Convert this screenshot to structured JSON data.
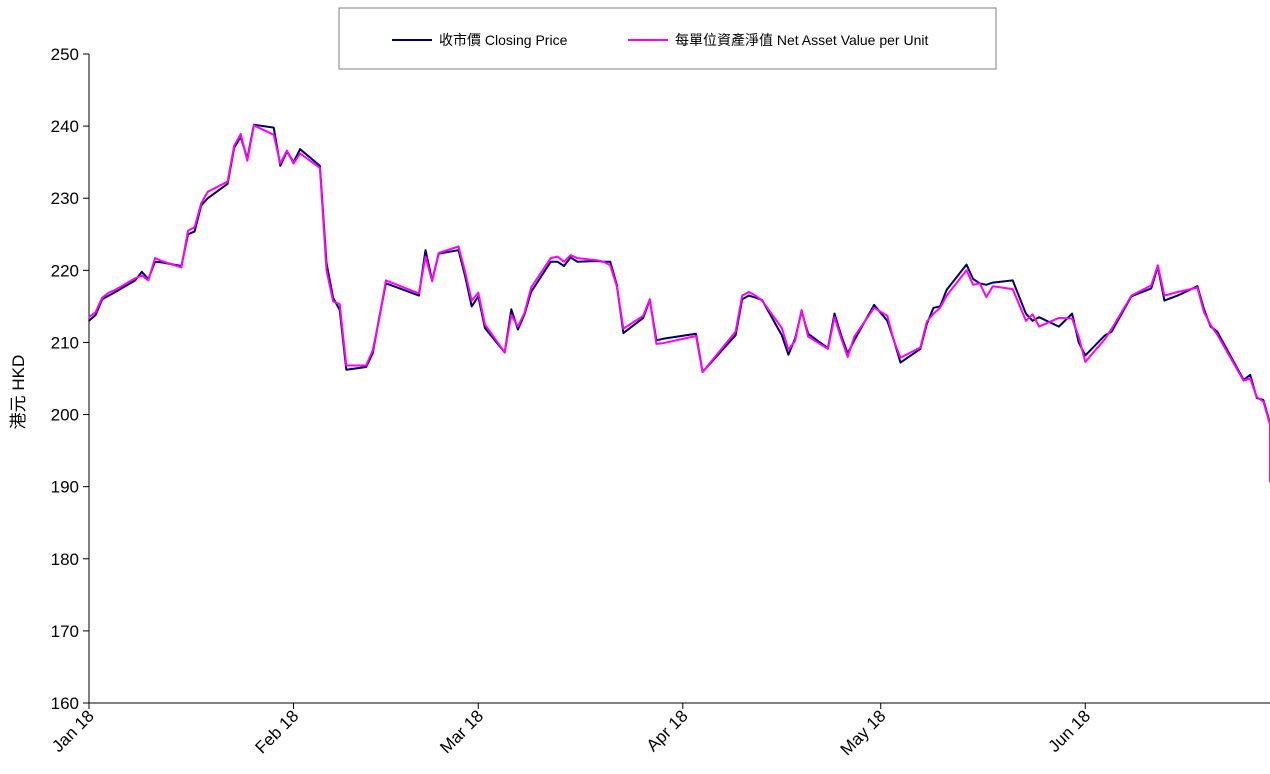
{
  "chart_data": {
    "type": "line",
    "ylabel": "港元 HKD",
    "ylim": [
      160,
      250
    ],
    "y_ticks": [
      "160",
      "170",
      "180",
      "190",
      "200",
      "210",
      "220",
      "230",
      "240",
      "250"
    ],
    "x_tick_labels": [
      "Jan 18",
      "Feb 18",
      "Mar 18",
      "Apr 18",
      "May 18",
      "Jun 18"
    ],
    "x_range": [
      "2018-01-01",
      "2018-06-29"
    ],
    "grid": false,
    "legend_position": "top-center",
    "series": [
      {
        "name": "收市價 Closing Price",
        "color": "#000066",
        "points": [
          [
            "2018-01-01",
            213.0
          ],
          [
            "2018-01-02",
            213.8
          ],
          [
            "2018-01-03",
            216.0
          ],
          [
            "2018-01-04",
            216.5
          ],
          [
            "2018-01-05",
            217.0
          ],
          [
            "2018-01-08",
            218.6
          ],
          [
            "2018-01-09",
            219.8
          ],
          [
            "2018-01-10",
            218.8
          ],
          [
            "2018-01-11",
            221.2
          ],
          [
            "2018-01-12",
            221.1
          ],
          [
            "2018-01-15",
            220.6
          ],
          [
            "2018-01-16",
            225.0
          ],
          [
            "2018-01-17",
            225.4
          ],
          [
            "2018-01-18",
            229.0
          ],
          [
            "2018-01-19",
            230.0
          ],
          [
            "2018-01-22",
            232.0
          ],
          [
            "2018-01-23",
            237.0
          ],
          [
            "2018-01-24",
            238.5
          ],
          [
            "2018-01-25",
            235.5
          ],
          [
            "2018-01-26",
            240.2
          ],
          [
            "2018-01-29",
            239.8
          ],
          [
            "2018-01-30",
            234.5
          ],
          [
            "2018-01-31",
            236.5
          ],
          [
            "2018-02-01",
            235.0
          ],
          [
            "2018-02-02",
            236.8
          ],
          [
            "2018-02-05",
            234.5
          ],
          [
            "2018-02-06",
            221.0
          ],
          [
            "2018-02-07",
            216.2
          ],
          [
            "2018-02-08",
            214.5
          ],
          [
            "2018-02-09",
            206.2
          ],
          [
            "2018-02-12",
            206.6
          ],
          [
            "2018-02-13",
            208.5
          ],
          [
            "2018-02-14",
            213.5
          ],
          [
            "2018-02-15",
            218.2
          ],
          [
            "2018-02-20",
            216.5
          ],
          [
            "2018-02-21",
            222.8
          ],
          [
            "2018-02-22",
            218.6
          ],
          [
            "2018-02-23",
            222.3
          ],
          [
            "2018-02-26",
            222.8
          ],
          [
            "2018-02-27",
            219.2
          ],
          [
            "2018-02-28",
            215.0
          ],
          [
            "2018-03-01",
            216.4
          ],
          [
            "2018-03-02",
            212.0
          ],
          [
            "2018-03-05",
            208.6
          ],
          [
            "2018-03-06",
            214.6
          ],
          [
            "2018-03-07",
            211.8
          ],
          [
            "2018-03-08",
            213.9
          ],
          [
            "2018-03-09",
            217.0
          ],
          [
            "2018-03-12",
            221.2
          ],
          [
            "2018-03-13",
            221.2
          ],
          [
            "2018-03-14",
            220.6
          ],
          [
            "2018-03-15",
            221.8
          ],
          [
            "2018-03-16",
            221.2
          ],
          [
            "2018-03-19",
            221.3
          ],
          [
            "2018-03-20",
            221.2
          ],
          [
            "2018-03-21",
            221.2
          ],
          [
            "2018-03-22",
            218.0
          ],
          [
            "2018-03-23",
            211.3
          ],
          [
            "2018-03-26",
            213.4
          ],
          [
            "2018-03-27",
            215.9
          ],
          [
            "2018-03-28",
            210.3
          ],
          [
            "2018-03-29",
            210.5
          ],
          [
            "2018-04-03",
            211.2
          ],
          [
            "2018-04-04",
            205.9
          ],
          [
            "2018-04-09",
            211.0
          ],
          [
            "2018-04-10",
            216.0
          ],
          [
            "2018-04-11",
            216.5
          ],
          [
            "2018-04-12",
            216.2
          ],
          [
            "2018-04-13",
            215.9
          ],
          [
            "2018-04-16",
            211.0
          ],
          [
            "2018-04-17",
            208.3
          ],
          [
            "2018-04-18",
            210.5
          ],
          [
            "2018-04-19",
            214.3
          ],
          [
            "2018-04-20",
            211.2
          ],
          [
            "2018-04-23",
            209.2
          ],
          [
            "2018-04-24",
            214.0
          ],
          [
            "2018-04-25",
            211.0
          ],
          [
            "2018-04-26",
            208.5
          ],
          [
            "2018-04-27",
            210.3
          ],
          [
            "2018-04-30",
            215.2
          ],
          [
            "2018-05-02",
            213.0
          ],
          [
            "2018-05-03",
            210.3
          ],
          [
            "2018-05-04",
            207.2
          ],
          [
            "2018-05-07",
            209.1
          ],
          [
            "2018-05-08",
            212.6
          ],
          [
            "2018-05-09",
            214.8
          ],
          [
            "2018-05-10",
            215.0
          ],
          [
            "2018-05-11",
            217.3
          ],
          [
            "2018-05-14",
            220.8
          ],
          [
            "2018-05-15",
            218.8
          ],
          [
            "2018-05-16",
            218.2
          ],
          [
            "2018-05-17",
            218.0
          ],
          [
            "2018-05-18",
            218.3
          ],
          [
            "2018-05-21",
            218.6
          ],
          [
            "2018-05-23",
            214.0
          ],
          [
            "2018-05-24",
            213.0
          ],
          [
            "2018-05-25",
            213.5
          ],
          [
            "2018-05-28",
            212.2
          ],
          [
            "2018-05-30",
            214.0
          ],
          [
            "2018-05-31",
            210.0
          ],
          [
            "2018-06-01",
            208.2
          ],
          [
            "2018-06-04",
            211.0
          ],
          [
            "2018-06-05",
            211.5
          ],
          [
            "2018-06-08",
            216.4
          ],
          [
            "2018-06-11",
            217.5
          ],
          [
            "2018-06-12",
            220.5
          ],
          [
            "2018-06-13",
            215.8
          ],
          [
            "2018-06-15",
            216.5
          ],
          [
            "2018-06-18",
            217.8
          ],
          [
            "2018-06-19",
            214.6
          ],
          [
            "2018-06-20",
            212.2
          ],
          [
            "2018-06-21",
            211.5
          ],
          [
            "2018-06-25",
            204.8
          ],
          [
            "2018-06-26",
            205.5
          ],
          [
            "2018-06-27",
            202.3
          ],
          [
            "2018-06-28",
            202.0
          ],
          [
            "2018-07-02",
            198.8
          ],
          [
            "2018-07-04",
            191.0
          ],
          [
            "2018-07-05",
            191.2
          ],
          [
            "2018-07-06",
            195.8
          ]
        ]
      },
      {
        "name": "每單位資產淨值 Net Asset Value per Unit",
        "color": "#ff00ff",
        "points": [
          [
            "2018-01-01",
            213.5
          ],
          [
            "2018-01-02",
            214.2
          ],
          [
            "2018-01-03",
            216.2
          ],
          [
            "2018-01-04",
            216.9
          ],
          [
            "2018-01-05",
            217.3
          ],
          [
            "2018-01-08",
            218.9
          ],
          [
            "2018-01-09",
            219.3
          ],
          [
            "2018-01-10",
            218.6
          ],
          [
            "2018-01-11",
            221.7
          ],
          [
            "2018-01-12",
            221.3
          ],
          [
            "2018-01-15",
            220.4
          ],
          [
            "2018-01-16",
            225.5
          ],
          [
            "2018-01-17",
            226.0
          ],
          [
            "2018-01-18",
            229.3
          ],
          [
            "2018-01-19",
            230.9
          ],
          [
            "2018-01-22",
            232.3
          ],
          [
            "2018-01-23",
            237.3
          ],
          [
            "2018-01-24",
            238.9
          ],
          [
            "2018-01-25",
            235.2
          ],
          [
            "2018-01-26",
            240.1
          ],
          [
            "2018-01-29",
            238.8
          ],
          [
            "2018-01-30",
            234.8
          ],
          [
            "2018-01-31",
            236.6
          ],
          [
            "2018-02-01",
            234.8
          ],
          [
            "2018-02-02",
            236.2
          ],
          [
            "2018-02-05",
            234.2
          ],
          [
            "2018-02-06",
            220.0
          ],
          [
            "2018-02-07",
            215.7
          ],
          [
            "2018-02-08",
            215.3
          ],
          [
            "2018-02-09",
            206.8
          ],
          [
            "2018-02-12",
            206.8
          ],
          [
            "2018-02-13",
            208.9
          ],
          [
            "2018-02-14",
            213.3
          ],
          [
            "2018-02-15",
            218.6
          ],
          [
            "2018-02-20",
            216.8
          ],
          [
            "2018-02-21",
            221.9
          ],
          [
            "2018-02-22",
            218.5
          ],
          [
            "2018-02-23",
            222.4
          ],
          [
            "2018-02-26",
            223.3
          ],
          [
            "2018-02-27",
            219.8
          ],
          [
            "2018-02-28",
            215.8
          ],
          [
            "2018-03-01",
            216.9
          ],
          [
            "2018-03-02",
            212.5
          ],
          [
            "2018-03-05",
            208.6
          ],
          [
            "2018-03-06",
            213.8
          ],
          [
            "2018-03-07",
            212.2
          ],
          [
            "2018-03-08",
            214.1
          ],
          [
            "2018-03-09",
            217.6
          ],
          [
            "2018-03-12",
            221.7
          ],
          [
            "2018-03-13",
            221.9
          ],
          [
            "2018-03-14",
            221.2
          ],
          [
            "2018-03-15",
            222.1
          ],
          [
            "2018-03-16",
            221.7
          ],
          [
            "2018-03-19",
            221.4
          ],
          [
            "2018-03-20",
            221.2
          ],
          [
            "2018-03-21",
            220.7
          ],
          [
            "2018-03-22",
            217.8
          ],
          [
            "2018-03-23",
            211.9
          ],
          [
            "2018-03-26",
            213.7
          ],
          [
            "2018-03-27",
            216.0
          ],
          [
            "2018-03-28",
            209.8
          ],
          [
            "2018-03-29",
            209.9
          ],
          [
            "2018-04-03",
            210.9
          ],
          [
            "2018-04-04",
            205.9
          ],
          [
            "2018-04-09",
            211.5
          ],
          [
            "2018-04-10",
            216.5
          ],
          [
            "2018-04-11",
            217.0
          ],
          [
            "2018-04-12",
            216.5
          ],
          [
            "2018-04-13",
            215.8
          ],
          [
            "2018-04-16",
            212.0
          ],
          [
            "2018-04-17",
            209.0
          ],
          [
            "2018-04-18",
            210.2
          ],
          [
            "2018-04-19",
            214.5
          ],
          [
            "2018-04-20",
            210.8
          ],
          [
            "2018-04-23",
            209.1
          ],
          [
            "2018-04-24",
            213.5
          ],
          [
            "2018-04-25",
            210.6
          ],
          [
            "2018-04-26",
            208.0
          ],
          [
            "2018-04-27",
            210.8
          ],
          [
            "2018-04-30",
            214.8
          ],
          [
            "2018-05-02",
            213.7
          ],
          [
            "2018-05-03",
            210.2
          ],
          [
            "2018-05-04",
            207.9
          ],
          [
            "2018-05-07",
            209.3
          ],
          [
            "2018-05-08",
            212.9
          ],
          [
            "2018-05-09",
            214.0
          ],
          [
            "2018-05-10",
            214.8
          ],
          [
            "2018-05-11",
            216.5
          ],
          [
            "2018-05-14",
            220.0
          ],
          [
            "2018-05-15",
            218.0
          ],
          [
            "2018-05-16",
            218.2
          ],
          [
            "2018-05-17",
            216.3
          ],
          [
            "2018-05-18",
            217.8
          ],
          [
            "2018-05-21",
            217.4
          ],
          [
            "2018-05-23",
            213.0
          ],
          [
            "2018-05-24",
            213.9
          ],
          [
            "2018-05-25",
            212.2
          ],
          [
            "2018-05-28",
            213.4
          ],
          [
            "2018-05-30",
            213.3
          ],
          [
            "2018-05-31",
            210.8
          ],
          [
            "2018-06-01",
            207.3
          ],
          [
            "2018-06-04",
            210.5
          ],
          [
            "2018-06-05",
            211.9
          ],
          [
            "2018-06-08",
            216.5
          ],
          [
            "2018-06-11",
            217.9
          ],
          [
            "2018-06-12",
            220.7
          ],
          [
            "2018-06-13",
            216.5
          ],
          [
            "2018-06-15",
            217.0
          ],
          [
            "2018-06-18",
            217.6
          ],
          [
            "2018-06-19",
            214.2
          ],
          [
            "2018-06-20",
            212.4
          ],
          [
            "2018-06-21",
            211.1
          ],
          [
            "2018-06-25",
            204.7
          ],
          [
            "2018-06-26",
            205.0
          ],
          [
            "2018-06-27",
            202.4
          ],
          [
            "2018-06-28",
            201.8
          ],
          [
            "2018-07-02",
            198.6
          ],
          [
            "2018-07-04",
            190.7
          ],
          [
            "2018-07-05",
            191.0
          ],
          [
            "2018-07-06",
            195.9
          ]
        ]
      }
    ]
  }
}
